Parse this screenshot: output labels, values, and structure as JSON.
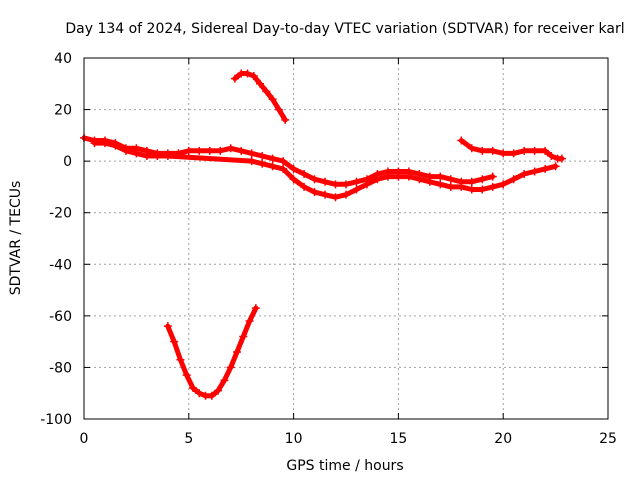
{
  "chart_data": {
    "type": "scatter",
    "title": "Day 134 of 2024, Sidereal Day-to-day VTEC variation (SDTVAR) for receiver karl",
    "xlabel": "GPS time / hours",
    "ylabel": "SDTVAR / TECUs",
    "xlim": [
      0,
      25
    ],
    "ylim": [
      -100,
      40
    ],
    "xticks": [
      0,
      5,
      10,
      15,
      20,
      25
    ],
    "yticks": [
      -100,
      -80,
      -60,
      -40,
      -20,
      0,
      20,
      40
    ],
    "grid": true,
    "color": "#ff0000",
    "series": [
      {
        "name": "main-band-upper",
        "x": [
          0,
          0.5,
          1,
          1.5,
          2,
          2.5,
          3,
          3.5,
          4,
          4.5,
          5,
          5.5,
          6,
          6.5,
          7,
          7.5,
          8,
          8.5,
          9,
          9.5,
          10,
          10.5,
          11,
          11.5,
          12,
          12.5,
          13,
          13.5,
          14,
          14.5,
          15,
          15.5,
          16,
          16.5,
          17,
          17.5,
          18,
          18.5,
          19,
          19.5
        ],
        "y": [
          9,
          8,
          8,
          7,
          5,
          5,
          4,
          3,
          3,
          3,
          4,
          4,
          4,
          4,
          5,
          4,
          3,
          2,
          1,
          0,
          -3,
          -5,
          -7,
          -8,
          -9,
          -9,
          -8,
          -7,
          -5,
          -4,
          -4,
          -4,
          -5,
          -6,
          -6,
          -7,
          -8,
          -8,
          -7,
          -6
        ]
      },
      {
        "name": "main-band-lower",
        "x": [
          0.5,
          1,
          1.5,
          2,
          2.5,
          3,
          3.5,
          4,
          8,
          8.5,
          9,
          9.5,
          10,
          10.5,
          11,
          11.5,
          12,
          12.5,
          13,
          13.5,
          14,
          14.5,
          15,
          15.5,
          16,
          16.5,
          17,
          17.5,
          18,
          18.5,
          19,
          19.5,
          20,
          20.5,
          21,
          21.5,
          22,
          22.5
        ],
        "y": [
          7,
          7,
          6,
          4,
          3,
          2,
          2,
          2,
          0,
          -1,
          -2,
          -3,
          -7,
          -10,
          -12,
          -13,
          -14,
          -13,
          -11,
          -9,
          -7,
          -6,
          -6,
          -6,
          -7,
          -8,
          -9,
          -10,
          -10,
          -11,
          -11,
          -10,
          -9,
          -7,
          -5,
          -4,
          -3,
          -2
        ]
      },
      {
        "name": "late-arc",
        "x": [
          18,
          18.5,
          19,
          19.5,
          20,
          20.5,
          21,
          21.5,
          22,
          22.3,
          22.6,
          22.8
        ],
        "y": [
          8,
          5,
          4,
          4,
          3,
          3,
          4,
          4,
          4,
          2,
          1,
          1
        ]
      },
      {
        "name": "upper-arc",
        "x": [
          7.2,
          7.5,
          7.8,
          8.1,
          8.4,
          8.7,
          9.0,
          9.3,
          9.6
        ],
        "y": [
          32,
          34,
          34,
          33,
          30,
          27,
          24,
          20,
          16
        ]
      },
      {
        "name": "deep-arc",
        "x": [
          4.0,
          4.3,
          4.6,
          4.9,
          5.2,
          5.5,
          5.8,
          6.1,
          6.4,
          6.7,
          7.0,
          7.3,
          7.6,
          7.9,
          8.2
        ],
        "y": [
          -64,
          -70,
          -77,
          -83,
          -88,
          -90,
          -91,
          -91,
          -89,
          -85,
          -80,
          -74,
          -68,
          -62,
          -57
        ]
      }
    ]
  }
}
